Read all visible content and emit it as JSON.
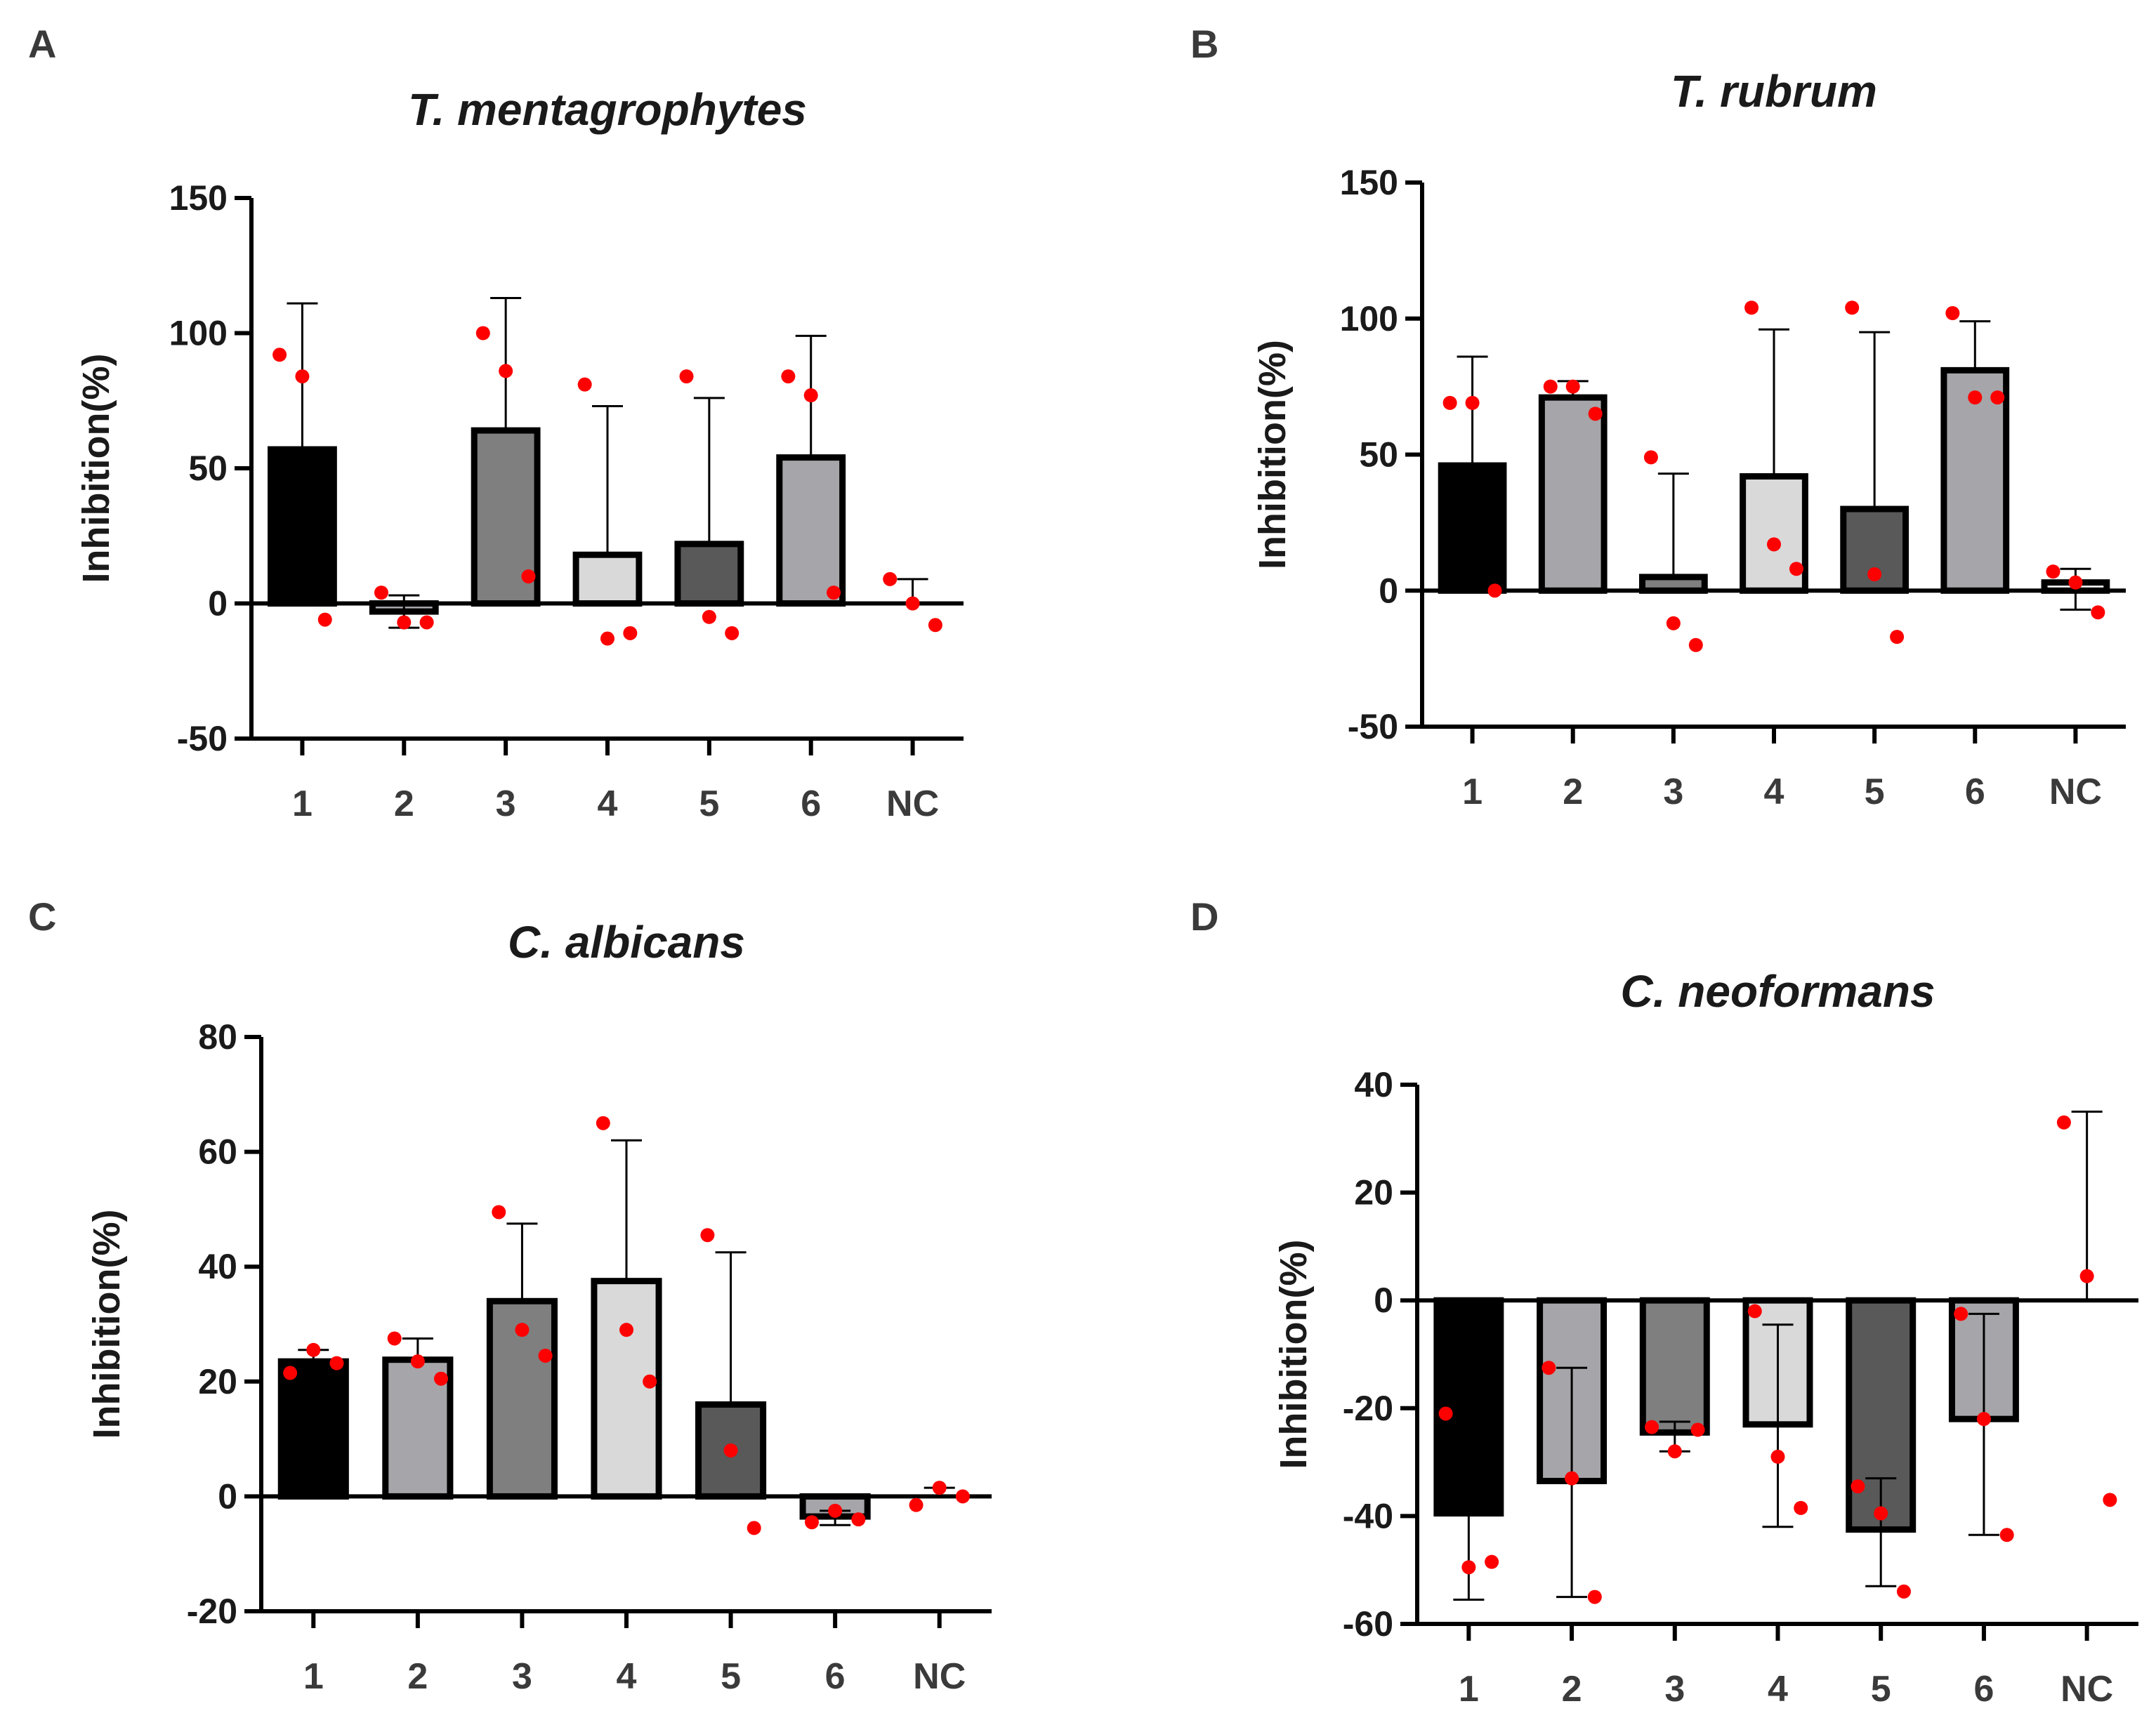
{
  "chart_data": [
    {
      "panel": "A",
      "title": "T. mentagrophytes",
      "type": "bar",
      "ylabel": "Inhibition(%)",
      "ylim": [
        -50,
        150
      ],
      "yticks": [
        -50,
        0,
        50,
        100,
        150
      ],
      "categories": [
        "1",
        "2",
        "3",
        "4",
        "5",
        "6",
        "NC"
      ],
      "values": [
        57,
        -3,
        64,
        18,
        22,
        54,
        0
      ],
      "error_upper": [
        111,
        3,
        113,
        73,
        76,
        99,
        9
      ],
      "error_lower": [
        57,
        -9,
        64,
        18,
        22,
        54,
        0
      ],
      "points": [
        [
          92,
          84,
          -6
        ],
        [
          4,
          -7,
          -7
        ],
        [
          100,
          86,
          10
        ],
        [
          81,
          -13,
          -11
        ],
        [
          84,
          -5,
          -11
        ],
        [
          84,
          77,
          4
        ],
        [
          9,
          0,
          -8
        ]
      ],
      "colors": [
        "#000000",
        "#a6a5a9",
        "#7f7f7f",
        "#d9d9d9",
        "#595959",
        "#a6a5a9",
        "#ffffff"
      ]
    },
    {
      "panel": "B",
      "title": "T. rubrum",
      "type": "bar",
      "ylabel": "Inhibition(%)",
      "ylim": [
        -50,
        150
      ],
      "yticks": [
        -50,
        0,
        50,
        100,
        150
      ],
      "categories": [
        "1",
        "2",
        "3",
        "4",
        "5",
        "6",
        "NC"
      ],
      "values": [
        46,
        71,
        5,
        42,
        30,
        81,
        3
      ],
      "error_upper": [
        86,
        77,
        43,
        96,
        95,
        99,
        8
      ],
      "error_lower": [
        46,
        71,
        5,
        42,
        30,
        81,
        -7
      ],
      "points": [
        [
          69,
          69,
          0
        ],
        [
          75,
          75,
          65
        ],
        [
          49,
          -12,
          -20
        ],
        [
          104,
          17,
          8
        ],
        [
          104,
          6,
          -17
        ],
        [
          102,
          71,
          71
        ],
        [
          7,
          3,
          -8
        ]
      ],
      "colors": [
        "#000000",
        "#a6a5a9",
        "#7f7f7f",
        "#d9d9d9",
        "#595959",
        "#a6a5a9",
        "#ffffff"
      ]
    },
    {
      "panel": "C",
      "title": "C. albicans",
      "type": "bar",
      "ylabel": "Inhibition(%)",
      "ylim": [
        -20,
        80
      ],
      "yticks": [
        -20,
        0,
        20,
        40,
        60,
        80
      ],
      "categories": [
        "1",
        "2",
        "3",
        "4",
        "5",
        "6",
        "NC"
      ],
      "values": [
        23.5,
        23.8,
        34,
        37.5,
        16,
        -3.5,
        0
      ],
      "error_upper": [
        25.5,
        27.5,
        47.5,
        62,
        42.5,
        -2.5,
        1.5
      ],
      "error_lower": [
        23.5,
        23.8,
        34,
        37.5,
        16,
        -5,
        0
      ],
      "points": [
        [
          21.5,
          25.5,
          23.2
        ],
        [
          27.5,
          23.5,
          20.5
        ],
        [
          49.5,
          29,
          24.5
        ],
        [
          65,
          29,
          20
        ],
        [
          45.5,
          8,
          -5.5
        ],
        [
          -4.5,
          -2.5,
          -4
        ],
        [
          -1.5,
          1.5,
          0
        ]
      ],
      "colors": [
        "#000000",
        "#a6a5a9",
        "#7f7f7f",
        "#d9d9d9",
        "#595959",
        "#a6a5a9",
        "#ffffff"
      ]
    },
    {
      "panel": "D",
      "title": "C. neoformans",
      "type": "bar",
      "ylabel": "Inhibition(%)",
      "ylim": [
        -60,
        40
      ],
      "yticks": [
        -60,
        -40,
        -20,
        0,
        20,
        40
      ],
      "categories": [
        "1",
        "2",
        "3",
        "4",
        "5",
        "6",
        "NC"
      ],
      "values": [
        -39.5,
        -33.5,
        -24.5,
        -23,
        -42.5,
        -22,
        0
      ],
      "error_upper": [
        -39.5,
        -12.5,
        -22.5,
        -4.5,
        -33,
        -2.5,
        35
      ],
      "error_lower": [
        -55.5,
        -55,
        -28,
        -42,
        -53,
        -43.5,
        0
      ],
      "points": [
        [
          -21,
          -49.5,
          -48.5
        ],
        [
          -12.5,
          -33,
          -55
        ],
        [
          -23.5,
          -28,
          -24
        ],
        [
          -2,
          -29,
          -38.5
        ],
        [
          -34.5,
          -39.5,
          -54
        ],
        [
          -2.5,
          -22,
          -43.5
        ],
        [
          33,
          4.5,
          -37
        ]
      ],
      "colors": [
        "#000000",
        "#a6a5a9",
        "#7f7f7f",
        "#d9d9d9",
        "#595959",
        "#a6a5a9",
        "#ffffff"
      ]
    }
  ],
  "accent": {
    "points": "#ff0000",
    "axis": "#000000"
  }
}
